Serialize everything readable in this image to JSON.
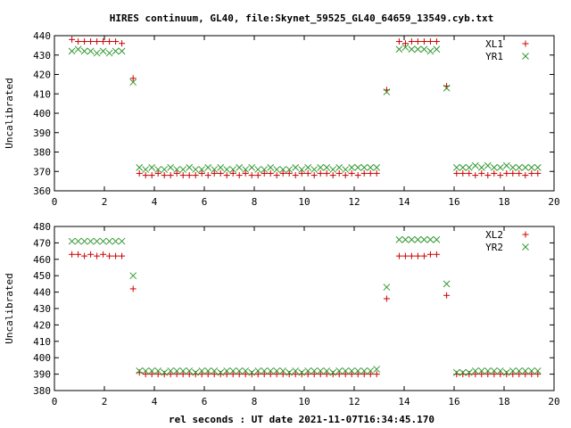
{
  "title": "HIRES continuum, GL40, file:Skynet_59525_GL40_64659_13549.cyb.txt",
  "xlabel": "rel seconds : UT date 2021-11-07T16:34:45.170",
  "colors": {
    "plus": "#cc0000",
    "cross": "#339933"
  },
  "chart_data": [
    {
      "type": "scatter",
      "ylabel": "Uncalibrated",
      "xlim": [
        0,
        20
      ],
      "ylim": [
        360,
        440
      ],
      "xticks": [
        "0",
        "2",
        "4",
        "6",
        "8",
        "10",
        "12",
        "14",
        "16",
        "18",
        "20"
      ],
      "yticks": [
        "360",
        "370",
        "380",
        "390",
        "400",
        "410",
        "420",
        "430",
        "440"
      ],
      "legend_position": "top-right",
      "series": [
        {
          "name": "XL1",
          "marker": "plus",
          "x": [
            0.7,
            0.95,
            1.2,
            1.45,
            1.7,
            1.95,
            2.2,
            2.45,
            2.7,
            3.15,
            3.4,
            3.65,
            3.9,
            4.15,
            4.4,
            4.65,
            4.9,
            5.15,
            5.4,
            5.65,
            5.9,
            6.15,
            6.4,
            6.65,
            6.9,
            7.15,
            7.4,
            7.65,
            7.9,
            8.15,
            8.4,
            8.65,
            8.9,
            9.15,
            9.4,
            9.65,
            9.9,
            10.15,
            10.4,
            10.65,
            10.9,
            11.15,
            11.4,
            11.65,
            11.9,
            12.15,
            12.4,
            12.65,
            12.9,
            13.3,
            13.8,
            14.05,
            14.3,
            14.55,
            14.8,
            15.05,
            15.3,
            15.7,
            16.1,
            16.35,
            16.6,
            16.85,
            17.1,
            17.35,
            17.6,
            17.85,
            18.1,
            18.35,
            18.6,
            18.85,
            19.1,
            19.35
          ],
          "y": [
            438,
            437,
            437,
            437,
            437,
            437,
            437,
            437,
            436,
            418,
            369,
            368,
            368,
            369,
            368,
            368,
            369,
            368,
            368,
            368,
            369,
            368,
            369,
            369,
            368,
            369,
            368,
            369,
            368,
            368,
            369,
            369,
            368,
            369,
            369,
            368,
            369,
            369,
            368,
            369,
            369,
            368,
            369,
            368,
            369,
            368,
            369,
            369,
            369,
            412,
            437,
            436,
            437,
            437,
            437,
            437,
            437,
            414,
            369,
            369,
            369,
            368,
            369,
            368,
            369,
            368,
            369,
            369,
            369,
            368,
            369,
            369
          ]
        },
        {
          "name": "YR1",
          "marker": "cross",
          "x": [
            0.7,
            0.95,
            1.2,
            1.45,
            1.7,
            1.95,
            2.2,
            2.45,
            2.7,
            3.15,
            3.4,
            3.65,
            3.9,
            4.15,
            4.4,
            4.65,
            4.9,
            5.15,
            5.4,
            5.65,
            5.9,
            6.15,
            6.4,
            6.65,
            6.9,
            7.15,
            7.4,
            7.65,
            7.9,
            8.15,
            8.4,
            8.65,
            8.9,
            9.15,
            9.4,
            9.65,
            9.9,
            10.15,
            10.4,
            10.65,
            10.9,
            11.15,
            11.4,
            11.65,
            11.9,
            12.15,
            12.4,
            12.65,
            12.9,
            13.3,
            13.8,
            14.05,
            14.3,
            14.55,
            14.8,
            15.05,
            15.3,
            15.7,
            16.1,
            16.35,
            16.6,
            16.85,
            17.1,
            17.35,
            17.6,
            17.85,
            18.1,
            18.35,
            18.6,
            18.85,
            19.1,
            19.35
          ],
          "y": [
            432,
            433,
            432,
            432,
            431,
            432,
            431,
            432,
            432,
            416,
            372,
            371,
            372,
            371,
            371,
            372,
            371,
            371,
            372,
            371,
            371,
            372,
            371,
            372,
            371,
            371,
            372,
            371,
            372,
            371,
            371,
            372,
            371,
            371,
            371,
            372,
            371,
            372,
            371,
            372,
            372,
            371,
            372,
            371,
            372,
            372,
            372,
            372,
            372,
            411,
            433,
            434,
            433,
            433,
            433,
            432,
            433,
            413,
            372,
            372,
            372,
            373,
            372,
            373,
            372,
            372,
            373,
            372,
            372,
            372,
            372,
            372
          ]
        }
      ]
    },
    {
      "type": "scatter",
      "ylabel": "Uncalibrated",
      "xlim": [
        0,
        20
      ],
      "ylim": [
        380,
        480
      ],
      "xticks": [
        "0",
        "2",
        "4",
        "6",
        "8",
        "10",
        "12",
        "14",
        "16",
        "18",
        "20"
      ],
      "yticks": [
        "380",
        "390",
        "400",
        "410",
        "420",
        "430",
        "440",
        "450",
        "460",
        "470",
        "480"
      ],
      "legend_position": "top-right",
      "series": [
        {
          "name": "XL2",
          "marker": "plus",
          "x": [
            0.7,
            0.95,
            1.2,
            1.45,
            1.7,
            1.95,
            2.2,
            2.45,
            2.7,
            3.15,
            3.4,
            3.65,
            3.9,
            4.15,
            4.4,
            4.65,
            4.9,
            5.15,
            5.4,
            5.65,
            5.9,
            6.15,
            6.4,
            6.65,
            6.9,
            7.15,
            7.4,
            7.65,
            7.9,
            8.15,
            8.4,
            8.65,
            8.9,
            9.15,
            9.4,
            9.65,
            9.9,
            10.15,
            10.4,
            10.65,
            10.9,
            11.15,
            11.4,
            11.65,
            11.9,
            12.15,
            12.4,
            12.65,
            12.9,
            13.3,
            13.8,
            14.05,
            14.3,
            14.55,
            14.8,
            15.05,
            15.3,
            15.7,
            16.1,
            16.35,
            16.6,
            16.85,
            17.1,
            17.35,
            17.6,
            17.85,
            18.1,
            18.35,
            18.6,
            18.85,
            19.1,
            19.35
          ],
          "y": [
            463,
            463,
            462,
            463,
            462,
            463,
            462,
            462,
            462,
            442,
            391,
            390,
            390,
            390,
            390,
            390,
            390,
            390,
            390,
            390,
            390,
            390,
            390,
            390,
            390,
            390,
            390,
            390,
            390,
            390,
            390,
            390,
            390,
            390,
            390,
            390,
            390,
            390,
            390,
            390,
            390,
            390,
            390,
            390,
            390,
            390,
            390,
            390,
            390,
            436,
            462,
            462,
            462,
            462,
            462,
            463,
            463,
            438,
            390,
            390,
            390,
            390,
            390,
            390,
            390,
            390,
            390,
            390,
            390,
            390,
            390,
            390
          ]
        },
        {
          "name": "YR2",
          "marker": "cross",
          "x": [
            0.7,
            0.95,
            1.2,
            1.45,
            1.7,
            1.95,
            2.2,
            2.45,
            2.7,
            3.15,
            3.4,
            3.65,
            3.9,
            4.15,
            4.4,
            4.65,
            4.9,
            5.15,
            5.4,
            5.65,
            5.9,
            6.15,
            6.4,
            6.65,
            6.9,
            7.15,
            7.4,
            7.65,
            7.9,
            8.15,
            8.4,
            8.65,
            8.9,
            9.15,
            9.4,
            9.65,
            9.9,
            10.15,
            10.4,
            10.65,
            10.9,
            11.15,
            11.4,
            11.65,
            11.9,
            12.15,
            12.4,
            12.65,
            12.9,
            13.3,
            13.8,
            14.05,
            14.3,
            14.55,
            14.8,
            15.05,
            15.3,
            15.7,
            16.1,
            16.35,
            16.6,
            16.85,
            17.1,
            17.35,
            17.6,
            17.85,
            18.1,
            18.35,
            18.6,
            18.85,
            19.1,
            19.35
          ],
          "y": [
            471,
            471,
            471,
            471,
            471,
            471,
            471,
            471,
            471,
            450,
            392,
            392,
            392,
            392,
            391,
            392,
            392,
            392,
            392,
            391,
            392,
            392,
            392,
            391,
            392,
            392,
            392,
            392,
            391,
            392,
            392,
            392,
            392,
            392,
            391,
            392,
            391,
            392,
            392,
            392,
            392,
            391,
            392,
            392,
            392,
            392,
            392,
            392,
            393,
            443,
            472,
            472,
            472,
            472,
            472,
            472,
            472,
            445,
            391,
            391,
            391,
            392,
            392,
            392,
            392,
            392,
            391,
            392,
            392,
            392,
            392,
            392
          ]
        }
      ]
    }
  ]
}
